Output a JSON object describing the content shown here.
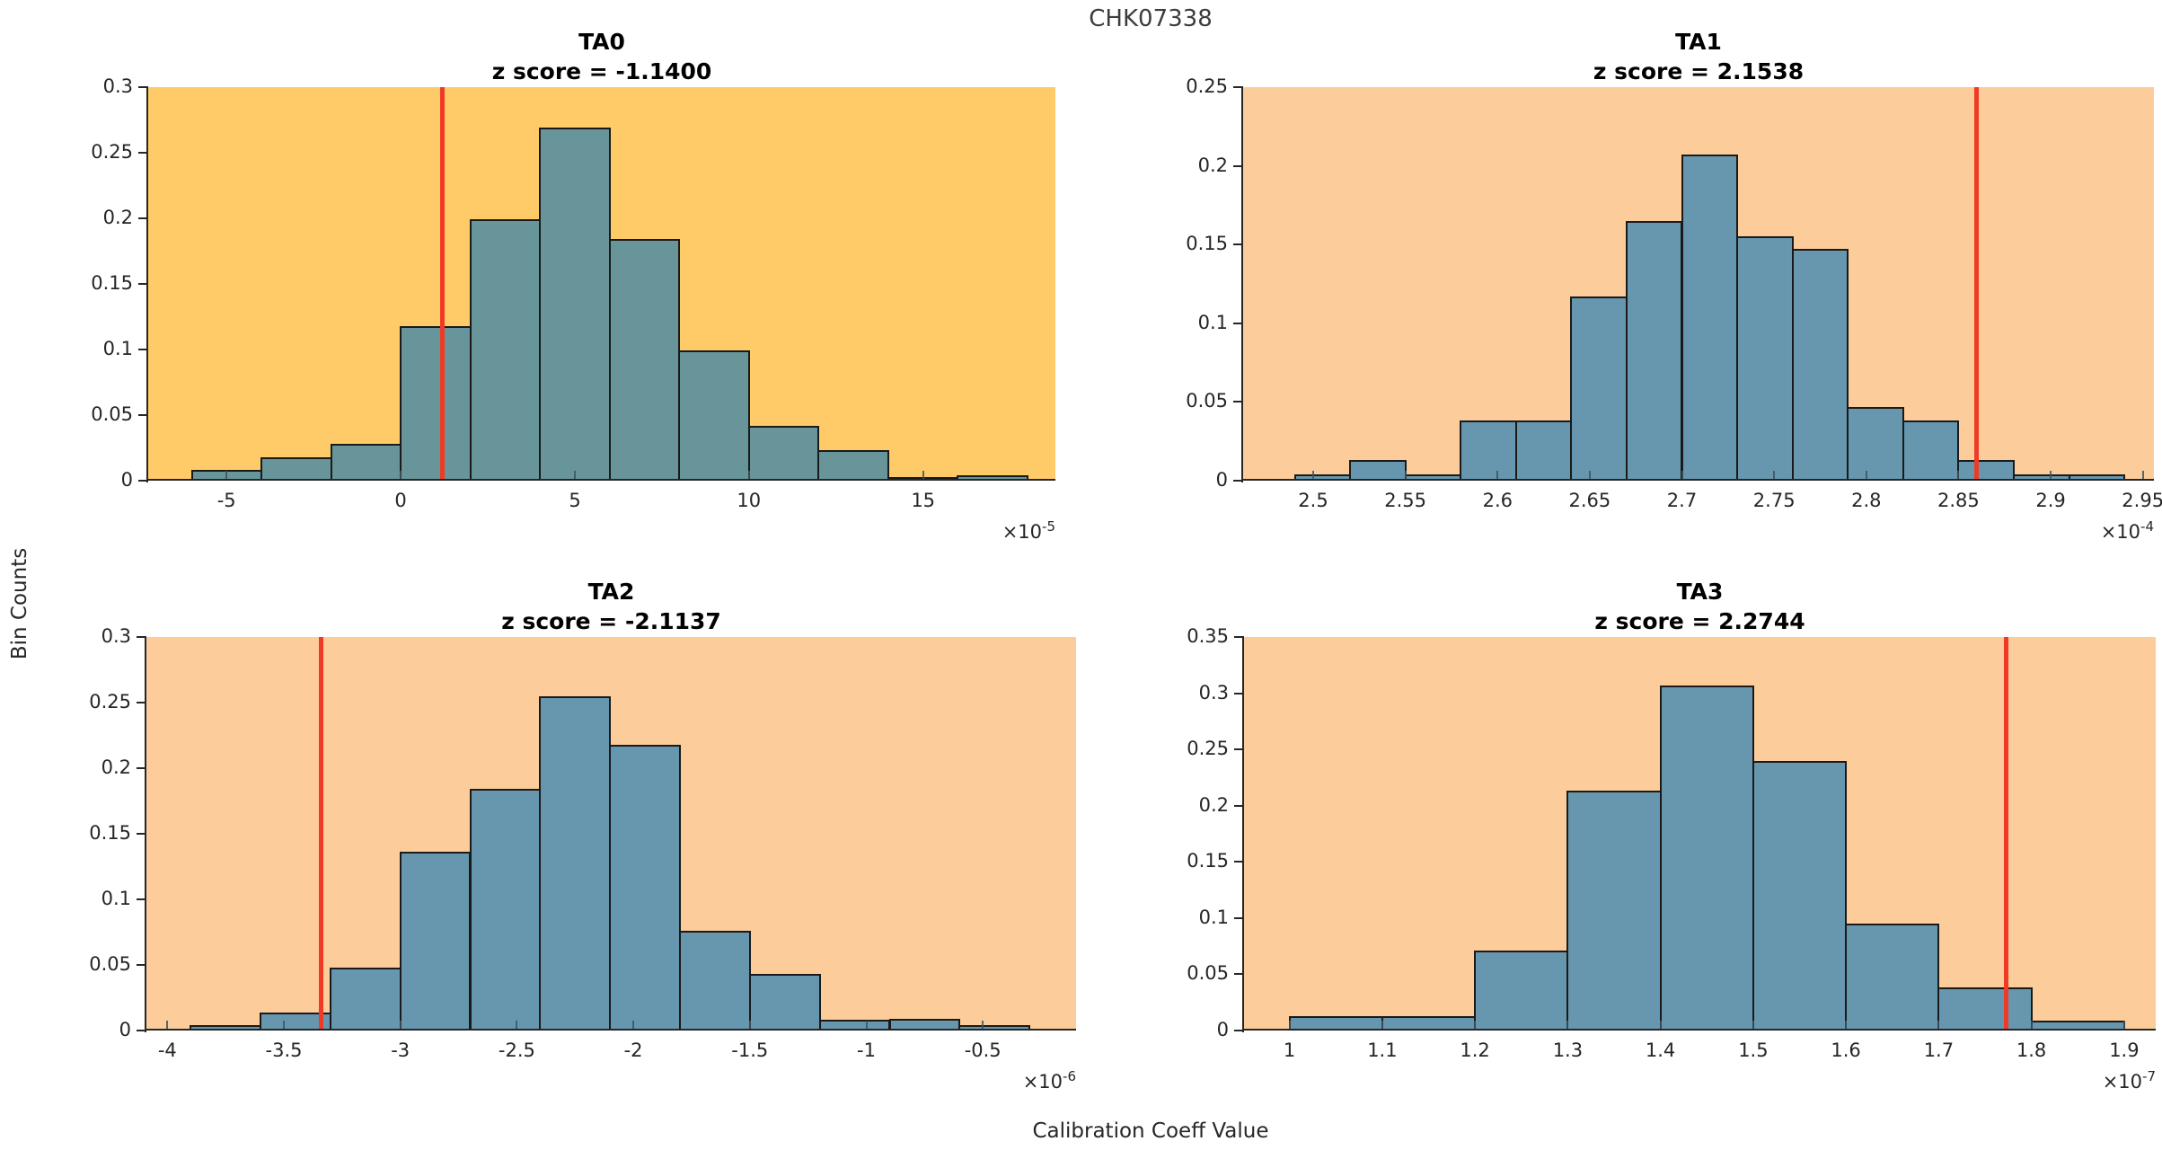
{
  "figure": {
    "title": "CHK07338",
    "xlabel": "Calibration Coeff Value",
    "ylabel": "Bin Counts"
  },
  "style": {
    "red_line_color": "#EF3A25",
    "bar_edge_color": "#1a1a1a",
    "axis_color": "#262626",
    "tick_mark_color": "#3c5560",
    "text_color": "#262626",
    "title_color": "#3d3d3d"
  },
  "chart_data": [
    {
      "type": "histogram",
      "name": "TA0",
      "title": "TA0",
      "subtitle": "z score = -1.1400",
      "z_score": -1.14,
      "background": "#FECB68",
      "bar_color": "#679599",
      "x_scale_prefix": "×10",
      "x_scale_exp": "-5",
      "xlim": [
        -7.25,
        18.8
      ],
      "ylim": [
        0,
        0.3
      ],
      "x_ticks": [
        -5,
        0,
        5,
        10,
        15
      ],
      "y_ticks": [
        0,
        0.05,
        0.1,
        0.15,
        0.2,
        0.25,
        0.3
      ],
      "red_line_x": 1.2,
      "bin_edges": [
        -6,
        -4,
        -2,
        0,
        2,
        4,
        6,
        8,
        10,
        12,
        14,
        16,
        18
      ],
      "bin_counts": [
        0.008,
        0.018,
        0.028,
        0.118,
        0.199,
        0.269,
        0.184,
        0.099,
        0.042,
        0.023,
        0.003,
        0.004
      ]
    },
    {
      "type": "histogram",
      "name": "TA1",
      "title": "TA1",
      "subtitle": "z score = 2.1538",
      "z_score": 2.1538,
      "background": "#FDCC9B",
      "bar_color": "#6697AE",
      "x_scale_prefix": "×10",
      "x_scale_exp": "-4",
      "xlim": [
        2.462,
        2.956
      ],
      "ylim": [
        0,
        0.25
      ],
      "x_ticks": [
        2.5,
        2.55,
        2.6,
        2.65,
        2.7,
        2.75,
        2.8,
        2.85,
        2.9,
        2.95
      ],
      "y_ticks": [
        0,
        0.05,
        0.1,
        0.15,
        0.2,
        0.25
      ],
      "red_line_x": 2.86,
      "bin_edges": [
        2.49,
        2.52,
        2.55,
        2.58,
        2.61,
        2.64,
        2.67,
        2.7,
        2.73,
        2.76,
        2.79,
        2.82,
        2.85,
        2.88,
        2.91,
        2.94
      ],
      "bin_counts": [
        0.004,
        0.013,
        0.004,
        0.038,
        0.038,
        0.117,
        0.165,
        0.207,
        0.155,
        0.147,
        0.047,
        0.038,
        0.013,
        0.004,
        0.004
      ]
    },
    {
      "type": "histogram",
      "name": "TA2",
      "title": "TA2",
      "subtitle": "z score = -2.1137",
      "z_score": -2.1137,
      "background": "#FDCC9B",
      "bar_color": "#6697AE",
      "x_scale_prefix": "×10",
      "x_scale_exp": "-6",
      "xlim": [
        -4.09,
        -0.1
      ],
      "ylim": [
        0,
        0.3
      ],
      "x_ticks": [
        -4,
        -3.5,
        -3,
        -2.5,
        -2,
        -1.5,
        -1,
        -0.5
      ],
      "y_ticks": [
        0,
        0.05,
        0.1,
        0.15,
        0.2,
        0.25,
        0.3
      ],
      "red_line_x": -3.34,
      "bin_edges": [
        -3.9,
        -3.6,
        -3.3,
        -3.0,
        -2.7,
        -2.4,
        -2.1,
        -1.8,
        -1.5,
        -1.2,
        -0.9,
        -0.6,
        -0.3
      ],
      "bin_counts": [
        0.004,
        0.014,
        0.048,
        0.136,
        0.184,
        0.255,
        0.218,
        0.076,
        0.043,
        0.008,
        0.009,
        0.004
      ]
    },
    {
      "type": "histogram",
      "name": "TA3",
      "title": "TA3",
      "subtitle": "z score = 2.2744",
      "z_score": 2.2744,
      "background": "#FDCC9B",
      "bar_color": "#6697AE",
      "x_scale_prefix": "×10",
      "x_scale_exp": "-7",
      "xlim": [
        0.951,
        1.934
      ],
      "ylim": [
        0,
        0.35
      ],
      "x_ticks": [
        1,
        1.1,
        1.2,
        1.3,
        1.4,
        1.5,
        1.6,
        1.7,
        1.8,
        1.9
      ],
      "y_ticks": [
        0,
        0.05,
        0.1,
        0.15,
        0.2,
        0.25,
        0.3,
        0.35
      ],
      "red_line_x": 1.773,
      "bin_edges": [
        1.0,
        1.1,
        1.2,
        1.3,
        1.4,
        1.5,
        1.6,
        1.7,
        1.8,
        1.9
      ],
      "bin_counts": [
        0.013,
        0.013,
        0.071,
        0.213,
        0.307,
        0.24,
        0.095,
        0.038,
        0.009
      ]
    }
  ]
}
